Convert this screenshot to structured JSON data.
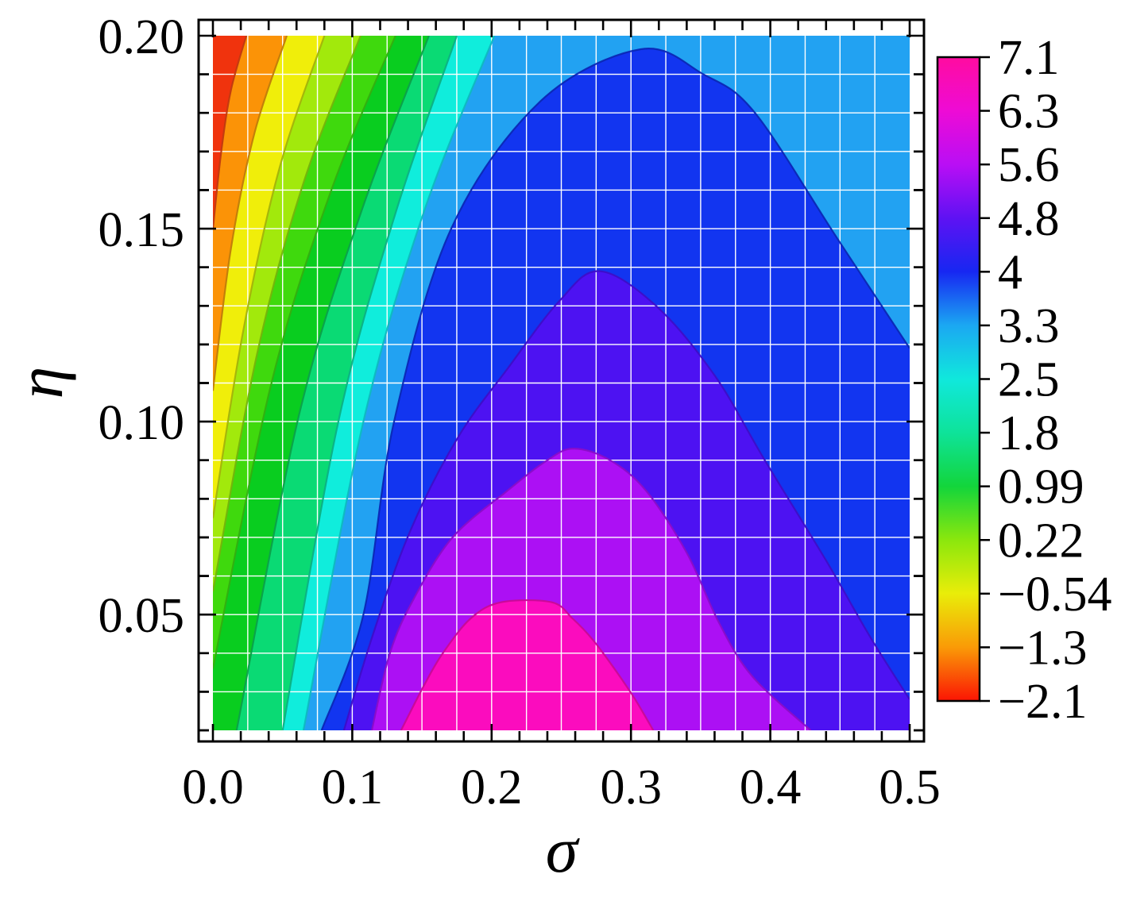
{
  "chart_data": {
    "type": "contour-filled",
    "xlabel": "σ",
    "ylabel": "η",
    "x_range": [
      0.0,
      0.5
    ],
    "y_range": [
      0.02,
      0.2
    ],
    "x_ticks": {
      "major_values": [
        0.0,
        0.1,
        0.2,
        0.3,
        0.4,
        0.5
      ],
      "labels": [
        "0.0",
        "0.1",
        "0.2",
        "0.3",
        "0.4",
        "0.5"
      ],
      "minor_step": 0.02
    },
    "y_ticks": {
      "major_values": [
        0.05,
        0.1,
        0.15,
        0.2
      ],
      "labels": [
        "0.05",
        "0.10",
        "0.15",
        "0.20"
      ],
      "minor_step": 0.01
    },
    "grid": {
      "x_step": 0.025,
      "y_step": 0.01,
      "color": "#ffffff"
    },
    "frame_color": "#000000",
    "background_band_color": "#22A2F2",
    "legend": {
      "vmin": -2.1,
      "vmax": 7.1,
      "tick_labels": [
        "7.1",
        "6.3",
        "5.6",
        "4.8",
        "4",
        "3.3",
        "2.5",
        "1.8",
        "0.99",
        "0.22",
        "−0.54",
        "−1.3",
        "−2.1"
      ],
      "gradient_stops": [
        [
          0,
          "#FF0CA0"
        ],
        [
          8.3,
          "#EE0BD5"
        ],
        [
          16.7,
          "#B90EF5"
        ],
        [
          25,
          "#5E12F3"
        ],
        [
          33.3,
          "#1727F2"
        ],
        [
          41.7,
          "#1BA8F2"
        ],
        [
          50,
          "#10E8DC"
        ],
        [
          58.3,
          "#0EE39A"
        ],
        [
          66.7,
          "#13D53B"
        ],
        [
          75,
          "#8BE70D"
        ],
        [
          83.3,
          "#E9ED09"
        ],
        [
          91.7,
          "#FA9A07"
        ],
        [
          100,
          "#FB1404"
        ]
      ]
    },
    "bands_left": [
      {
        "name": "cyan",
        "level_range": [
          2.5,
          3.3
        ],
        "fill": "#10EDDC",
        "stroke": "#0FB9C0",
        "pts": [
          [
            0.065,
            0.02
          ],
          [
            0.108,
            0.1
          ],
          [
            0.152,
            0.155
          ],
          [
            0.202,
            0.2
          ]
        ]
      },
      {
        "name": "spring",
        "level_range": [
          1.8,
          2.5
        ],
        "fill": "#0ADA74",
        "stroke": "#0CB184",
        "pts": [
          [
            0.05,
            0.02
          ],
          [
            0.09,
            0.1
          ],
          [
            0.131,
            0.154
          ],
          [
            0.175,
            0.2
          ]
        ]
      },
      {
        "name": "green",
        "level_range": [
          0.99,
          1.8
        ],
        "fill": "#09CD1F",
        "stroke": "#0CA04A",
        "pts": [
          [
            0.017,
            0.02
          ],
          [
            0.062,
            0.102
          ],
          [
            0.107,
            0.155
          ],
          [
            0.155,
            0.2
          ]
        ]
      },
      {
        "name": "lime",
        "level_range": [
          0.22,
          0.99
        ],
        "fill": "#3FD90D",
        "stroke": "#33AF10",
        "pts": [
          [
            0.0,
            0.036
          ],
          [
            0.042,
            0.11
          ],
          [
            0.085,
            0.16
          ],
          [
            0.131,
            0.2
          ]
        ]
      },
      {
        "name": "chartreuse",
        "level_range": [
          -0.54,
          0.22
        ],
        "fill": "#A2E90C",
        "stroke": "#74B40C",
        "pts": [
          [
            0.0,
            0.056
          ],
          [
            0.032,
            0.118
          ],
          [
            0.066,
            0.163
          ],
          [
            0.106,
            0.2
          ]
        ]
      },
      {
        "name": "yellow",
        "level_range": [
          -1.3,
          -0.54
        ],
        "fill": "#F0EE0A",
        "stroke": "#A3B30B",
        "pts": [
          [
            0.0,
            0.075
          ],
          [
            0.022,
            0.124
          ],
          [
            0.048,
            0.166
          ],
          [
            0.08,
            0.2
          ]
        ]
      },
      {
        "name": "orange",
        "level_range": [
          -2.1,
          -1.3
        ],
        "fill": "#FB9307",
        "stroke": "#C07C0A",
        "pts": [
          [
            0.0,
            0.108
          ],
          [
            0.013,
            0.145
          ],
          [
            0.03,
            0.175
          ],
          [
            0.053,
            0.2
          ]
        ]
      },
      {
        "name": "red",
        "level_range": [
          -2.9,
          -2.1
        ],
        "fill": "#F0330D",
        "stroke": "#C13A10",
        "pts": [
          [
            0.0,
            0.15
          ],
          [
            0.006,
            0.17
          ],
          [
            0.013,
            0.186
          ],
          [
            0.024,
            0.2
          ]
        ]
      }
    ],
    "domes": [
      {
        "name": "royal-blue",
        "level": 4.0,
        "fill": "#1235F0",
        "stroke": "#0B28B5",
        "close": "bottomRight",
        "pts": [
          [
            0.078,
            0.02
          ],
          [
            0.108,
            0.05
          ],
          [
            0.13,
            0.1
          ],
          [
            0.171,
            0.15
          ],
          [
            0.235,
            0.183
          ],
          [
            0.307,
            0.1965
          ],
          [
            0.352,
            0.19
          ],
          [
            0.389,
            0.18
          ],
          [
            0.448,
            0.1475
          ],
          [
            0.5,
            0.119
          ]
        ]
      },
      {
        "name": "indigo",
        "level": 4.8,
        "fill": "#4D12F2",
        "stroke": "#3D0EC8",
        "close": "bottomRight",
        "pts": [
          [
            0.094,
            0.02
          ],
          [
            0.115,
            0.045
          ],
          [
            0.142,
            0.072
          ],
          [
            0.176,
            0.096
          ],
          [
            0.212,
            0.114
          ],
          [
            0.248,
            0.131
          ],
          [
            0.277,
            0.139
          ],
          [
            0.318,
            0.13
          ],
          [
            0.36,
            0.112
          ],
          [
            0.396,
            0.09
          ],
          [
            0.44,
            0.064
          ],
          [
            0.472,
            0.044
          ],
          [
            0.5,
            0.028
          ]
        ]
      },
      {
        "name": "violet",
        "level": 5.6,
        "fill": "#AC10F4",
        "stroke": "#8A0DC8",
        "close": "bottom",
        "pts": [
          [
            0.114,
            0.02
          ],
          [
            0.127,
            0.04
          ],
          [
            0.144,
            0.054
          ],
          [
            0.172,
            0.07
          ],
          [
            0.211,
            0.082
          ],
          [
            0.24,
            0.09
          ],
          [
            0.259,
            0.093
          ],
          [
            0.285,
            0.09
          ],
          [
            0.311,
            0.082
          ],
          [
            0.34,
            0.066
          ],
          [
            0.363,
            0.048
          ],
          [
            0.387,
            0.034
          ],
          [
            0.429,
            0.02
          ]
        ]
      },
      {
        "name": "pink",
        "level": 6.3,
        "fill": "#FB0CBE",
        "stroke": "#C90A96",
        "close": "bottom",
        "pts": [
          [
            0.135,
            0.02
          ],
          [
            0.152,
            0.032
          ],
          [
            0.165,
            0.04
          ],
          [
            0.185,
            0.049
          ],
          [
            0.207,
            0.0532
          ],
          [
            0.243,
            0.0532
          ],
          [
            0.258,
            0.049
          ],
          [
            0.273,
            0.0433
          ],
          [
            0.29,
            0.035
          ],
          [
            0.303,
            0.028
          ],
          [
            0.316,
            0.02
          ]
        ]
      }
    ]
  }
}
